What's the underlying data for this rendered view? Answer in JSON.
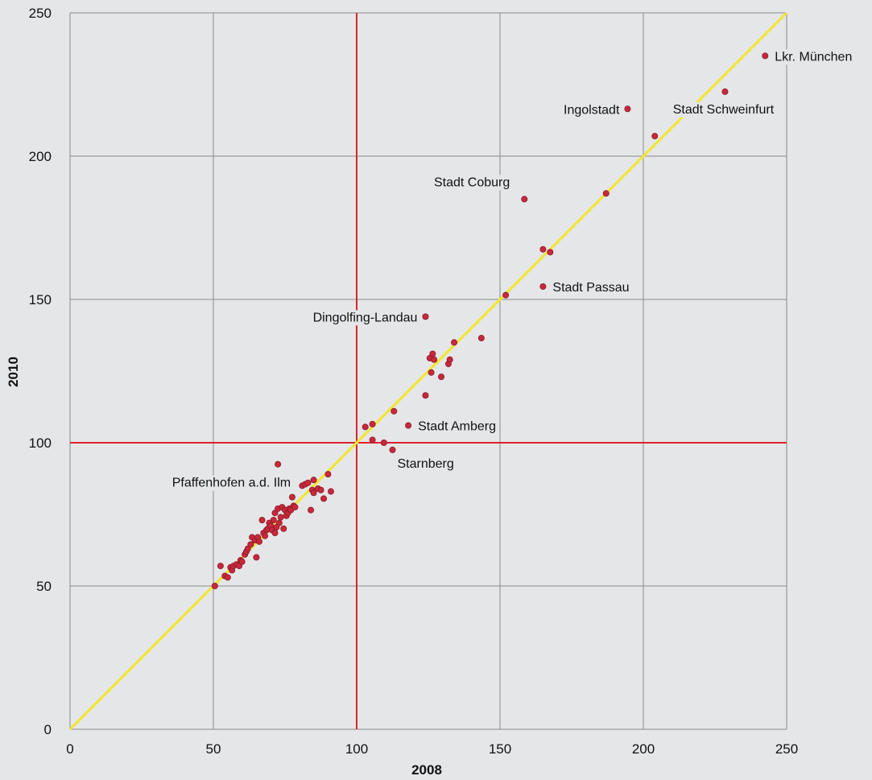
{
  "chart_data": {
    "type": "scatter",
    "title": "",
    "xlabel": "2008",
    "ylabel": "2010",
    "xlim": [
      0,
      250
    ],
    "ylim": [
      0,
      250
    ],
    "xticks": [
      0,
      50,
      100,
      150,
      200,
      250
    ],
    "yticks": [
      0,
      50,
      100,
      150,
      200,
      250
    ],
    "grid": true,
    "colors": {
      "background": "#e5e6e8",
      "grid": "#8a8a8a",
      "reference_lines": "#d9232d",
      "diagonal": "#f2e629",
      "points": "#c8283c"
    },
    "reference_lines": {
      "x": 100,
      "y": 100
    },
    "diagonal": [
      [
        0,
        0
      ],
      [
        250,
        250
      ]
    ],
    "points": [
      [
        50.5,
        50
      ],
      [
        52.5,
        57
      ],
      [
        54,
        53.5
      ],
      [
        55,
        53
      ],
      [
        56,
        56.5
      ],
      [
        56.5,
        55.5
      ],
      [
        57,
        57
      ],
      [
        58,
        57.5
      ],
      [
        59,
        57
      ],
      [
        59.5,
        59
      ],
      [
        60,
        58.5
      ],
      [
        61,
        61
      ],
      [
        61.5,
        62
      ],
      [
        62,
        63
      ],
      [
        63,
        64.5
      ],
      [
        63.5,
        67
      ],
      [
        64.5,
        66
      ],
      [
        65,
        60
      ],
      [
        65.5,
        67
      ],
      [
        66,
        65.5
      ],
      [
        67,
        73
      ],
      [
        67.5,
        68.5
      ],
      [
        68,
        67.5
      ],
      [
        68.5,
        69.5
      ],
      [
        69,
        70
      ],
      [
        69.5,
        72
      ],
      [
        70,
        71
      ],
      [
        70.5,
        69.5
      ],
      [
        71,
        73
      ],
      [
        71.5,
        75.5
      ],
      [
        71.5,
        68.5
      ],
      [
        72,
        70.5
      ],
      [
        72.5,
        77
      ],
      [
        73,
        72
      ],
      [
        73.5,
        74
      ],
      [
        74,
        77.5
      ],
      [
        74.5,
        70
      ],
      [
        75,
        76.5
      ],
      [
        75.5,
        74.5
      ],
      [
        76,
        75.5
      ],
      [
        76.5,
        77
      ],
      [
        77,
        76.5
      ],
      [
        77.5,
        81
      ],
      [
        78,
        78
      ],
      [
        78.5,
        77.5
      ],
      [
        81,
        85
      ],
      [
        82,
        85.5
      ],
      [
        83,
        86
      ],
      [
        84,
        76.5
      ],
      [
        84.5,
        83.5
      ],
      [
        85,
        82.5
      ],
      [
        85,
        87
      ],
      [
        86.5,
        84
      ],
      [
        87.5,
        83.5
      ],
      [
        88.5,
        80.5
      ],
      [
        90,
        89
      ],
      [
        91,
        83
      ],
      [
        72.5,
        92.5
      ],
      [
        103,
        105.5
      ],
      [
        105.5,
        106.5
      ],
      [
        105.5,
        101
      ],
      [
        109.5,
        100
      ],
      [
        112.5,
        97.5
      ],
      [
        113,
        111
      ],
      [
        118,
        106
      ],
      [
        124,
        116.5
      ],
      [
        124,
        144
      ],
      [
        125.5,
        129.5
      ],
      [
        126,
        124.5
      ],
      [
        126.5,
        131
      ],
      [
        127,
        129
      ],
      [
        129.5,
        123
      ],
      [
        132,
        127.5
      ],
      [
        132.5,
        129
      ],
      [
        134,
        135
      ],
      [
        143.5,
        136.5
      ],
      [
        152,
        151.5
      ],
      [
        158.5,
        185
      ],
      [
        165,
        167.5
      ],
      [
        165,
        154.5
      ],
      [
        167.5,
        166.5
      ],
      [
        187,
        187
      ],
      [
        194.5,
        216.5
      ],
      [
        204,
        207
      ],
      [
        228.5,
        222.5
      ],
      [
        242.5,
        235
      ]
    ],
    "annotations": [
      {
        "text": "Lkr. München",
        "x": 242.5,
        "y": 235,
        "pos": "right"
      },
      {
        "text": "Ingolstadt",
        "x": 194.5,
        "y": 216.5,
        "pos": "left"
      },
      {
        "text": "Stadt Schweinfurt",
        "x": 228.5,
        "y": 222.5,
        "pos": "below"
      },
      {
        "text": "Stadt Coburg",
        "x": 158.5,
        "y": 185,
        "pos": "above-left"
      },
      {
        "text": "Stadt Passau",
        "x": 165,
        "y": 154.5,
        "pos": "right"
      },
      {
        "text": "Dingolfing-Landau",
        "x": 124,
        "y": 144,
        "pos": "left"
      },
      {
        "text": "Stadt Amberg",
        "x": 118,
        "y": 106,
        "pos": "right"
      },
      {
        "text": "Starnberg",
        "x": 112.5,
        "y": 97.5,
        "pos": "below-right"
      },
      {
        "text": "Pfaffenhofen a.d. Ilm",
        "x": 72.5,
        "y": 92.5,
        "pos": "below-left"
      }
    ]
  }
}
